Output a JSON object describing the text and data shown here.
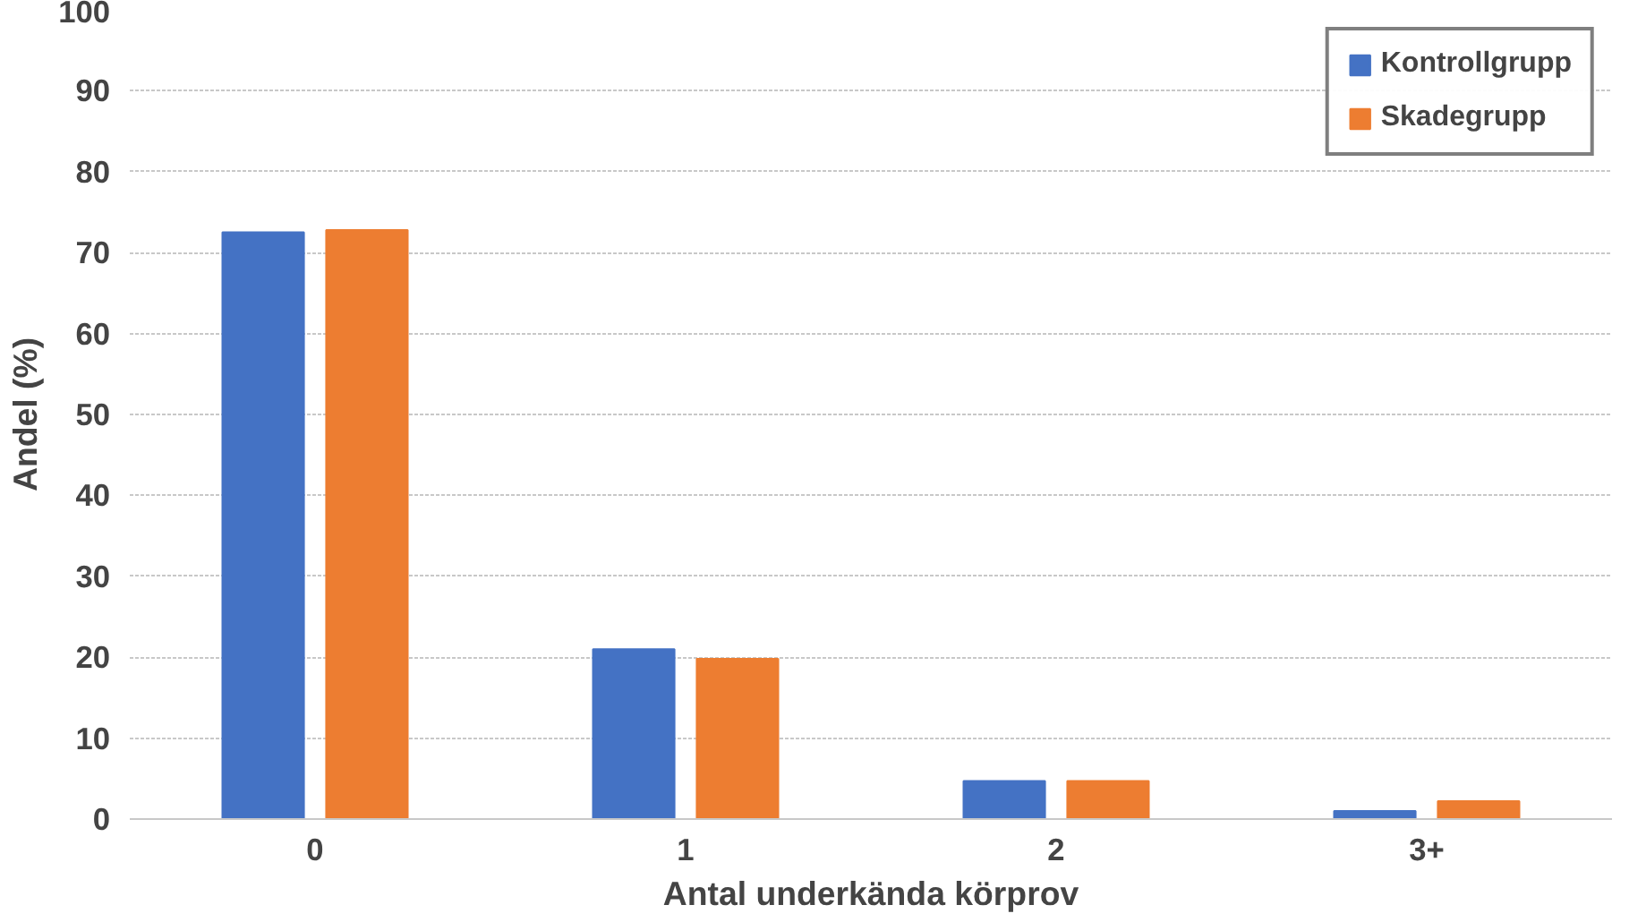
{
  "chart_data": {
    "type": "bar",
    "xlabel": "Antal underkända körprov",
    "ylabel": "Andel (%)",
    "categories": [
      "0",
      "1",
      "2",
      "3+"
    ],
    "series": [
      {
        "name": "Kontrollgrupp",
        "color": "#4472c4",
        "values": [
          72.5,
          21.0,
          4.7,
          1.0
        ]
      },
      {
        "name": "Skadegrupp",
        "color": "#ed7d31",
        "values": [
          72.8,
          19.8,
          4.7,
          2.2
        ]
      }
    ],
    "ylim": [
      0,
      100
    ],
    "yticks": [
      0,
      10,
      20,
      30,
      40,
      50,
      60,
      70,
      80,
      90,
      100
    ],
    "grid": "y",
    "legend": "top right"
  }
}
